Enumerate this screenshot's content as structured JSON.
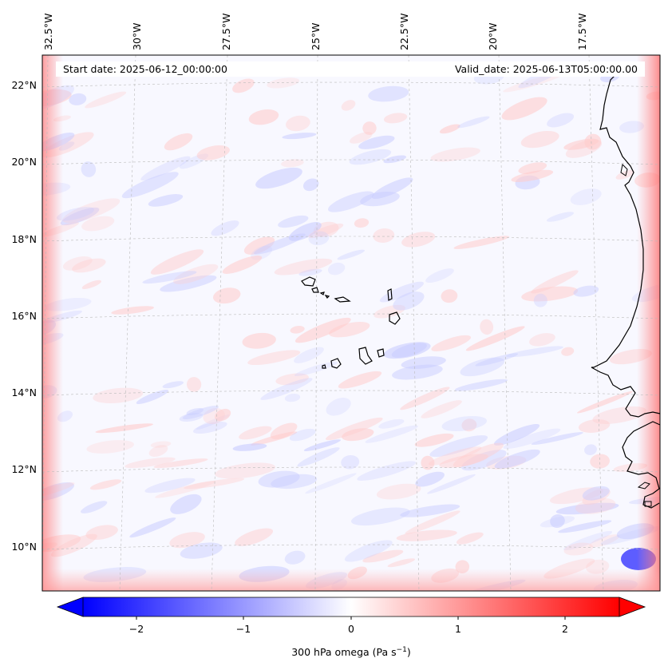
{
  "header": {
    "start_date": "Start date: 2025-06-12_00:00:00",
    "valid_date": "Valid_date: 2025-06-13T05:00:00.00"
  },
  "map": {
    "lat_labels": [
      "22°N",
      "20°N",
      "18°N",
      "16°N",
      "14°N",
      "12°N",
      "10°N"
    ],
    "lon_labels": [
      "32.5°W",
      "30°W",
      "27.5°W",
      "25°W",
      "22.5°W",
      "20°W",
      "17.5°W"
    ],
    "field": "300 hPa omega",
    "colors": {
      "negative": "#0000ff",
      "zero": "#ffffff",
      "positive": "#ff0000",
      "coast": "#000000",
      "grid": "#bbbbbb"
    }
  },
  "colorbar": {
    "tick_labels": [
      "−2",
      "−1",
      "0",
      "1",
      "2"
    ],
    "label_main": "300 hPa omega (Pa s",
    "label_sup": "−1",
    "label_end": ")"
  }
}
